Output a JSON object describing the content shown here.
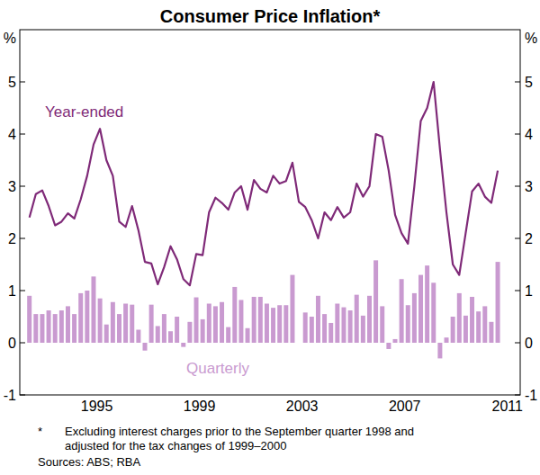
{
  "chart_data": {
    "type": "bar",
    "title": "Consumer Price Inflation*",
    "ylabel": "%",
    "y2label": "%",
    "x": [
      1992.875,
      1993.125,
      1993.375,
      1993.625,
      1993.875,
      1994.125,
      1994.375,
      1994.625,
      1994.875,
      1995.125,
      1995.375,
      1995.625,
      1995.875,
      1996.125,
      1996.375,
      1996.625,
      1996.875,
      1997.125,
      1997.375,
      1997.625,
      1997.875,
      1998.125,
      1998.375,
      1998.625,
      1998.875,
      1999.125,
      1999.375,
      1999.625,
      1999.875,
      2000.125,
      2000.375,
      2000.625,
      2000.875,
      2001.125,
      2001.375,
      2001.625,
      2001.875,
      2002.125,
      2002.375,
      2002.625,
      2002.875,
      2003.125,
      2003.375,
      2003.625,
      2003.875,
      2004.125,
      2004.375,
      2004.625,
      2004.875,
      2005.125,
      2005.375,
      2005.625,
      2005.875,
      2006.125,
      2006.375,
      2006.625,
      2006.875,
      2007.125,
      2007.375,
      2007.625,
      2007.875,
      2008.125,
      2008.375,
      2008.625,
      2008.875,
      2009.125,
      2009.375,
      2009.625,
      2009.875,
      2010.125,
      2010.375,
      2010.625,
      2010.875,
      2011.125
    ],
    "series": [
      {
        "name": "Year-ended",
        "type": "line",
        "color": "#7f2a78",
        "values": [
          2.4,
          2.85,
          2.92,
          2.62,
          2.25,
          2.32,
          2.48,
          2.38,
          2.75,
          3.2,
          3.8,
          4.1,
          3.5,
          3.2,
          2.32,
          2.22,
          2.62,
          2.15,
          1.55,
          1.52,
          1.12,
          1.45,
          1.85,
          1.6,
          1.22,
          1.1,
          1.7,
          1.68,
          2.5,
          2.78,
          2.68,
          2.55,
          2.88,
          3.0,
          2.55,
          3.12,
          2.95,
          2.88,
          3.2,
          3.05,
          3.1,
          3.45,
          2.7,
          2.6,
          2.35,
          2.0,
          2.5,
          2.35,
          2.6,
          2.4,
          2.5,
          3.05,
          2.8,
          3.0,
          4.0,
          3.95,
          3.3,
          2.45,
          2.1,
          1.9,
          3.0,
          4.25,
          4.5,
          5.0,
          3.7,
          2.5,
          1.5,
          1.3,
          2.1,
          2.9,
          3.05,
          2.8,
          2.68,
          3.3
        ]
      },
      {
        "name": "Quarterly",
        "type": "bar",
        "color": "#c99ad0",
        "values": [
          0.9,
          0.55,
          0.55,
          0.62,
          0.55,
          0.62,
          0.7,
          0.55,
          0.95,
          1.0,
          1.27,
          0.85,
          0.35,
          0.78,
          0.55,
          0.75,
          0.73,
          0.25,
          -0.15,
          0.73,
          0.32,
          0.55,
          0.22,
          0.5,
          -0.08,
          0.4,
          0.87,
          0.45,
          0.75,
          0.7,
          0.78,
          0.3,
          1.07,
          0.82,
          0.28,
          0.88,
          0.88,
          0.75,
          0.67,
          0.72,
          0.72,
          1.3,
          0.0,
          0.58,
          0.5,
          0.9,
          0.55,
          0.38,
          0.75,
          0.68,
          0.62,
          0.92,
          0.52,
          0.9,
          1.58,
          0.7,
          -0.12,
          0.07,
          1.22,
          0.72,
          0.95,
          1.3,
          1.48,
          1.15,
          -0.3,
          0.1,
          0.5,
          0.95,
          0.52,
          0.88,
          0.6,
          0.7,
          0.4,
          1.55
        ]
      }
    ],
    "xlim": [
      1992.5,
      2012.0
    ],
    "xticks": [
      {
        "value": 1995.5,
        "label": "1995"
      },
      {
        "value": 1999.5,
        "label": "1999"
      },
      {
        "value": 2003.5,
        "label": "2003"
      },
      {
        "value": 2007.5,
        "label": "2007"
      },
      {
        "value": 2011.5,
        "label": "2011"
      }
    ],
    "ylim": [
      -1,
      6
    ],
    "yticks": [
      -1,
      0,
      1,
      2,
      3,
      4,
      5
    ],
    "y2lim": [
      -1,
      6
    ],
    "y2ticks": [
      -1,
      0,
      1,
      2,
      3,
      4,
      5
    ],
    "grid": false,
    "footnote": {
      "marker": "*",
      "lines": [
        "Excluding interest charges prior to the September quarter 1998 and",
        "adjusted for the tax changes of 1999–2000"
      ]
    },
    "source": "Sources: ABS; RBA"
  }
}
